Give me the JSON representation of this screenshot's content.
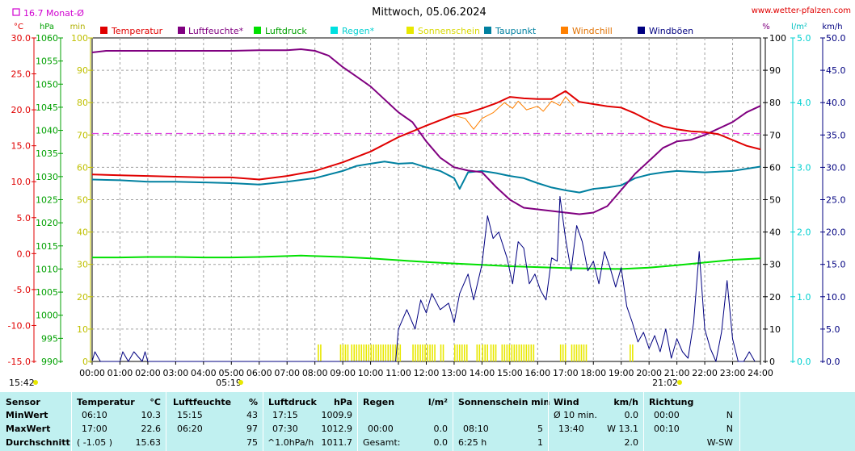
{
  "header": {
    "title": "Mittwoch, 05.06.2024",
    "site": "www.wetter-pfalzen.com",
    "avg_label": "16.7 Monat-Ø"
  },
  "axes": {
    "units_left": [
      "°C",
      "hPa",
      "min"
    ],
    "units_right": [
      "%",
      "l/m²",
      "km/h"
    ],
    "temp_ticks": [
      "30.0",
      "25.0",
      "20.0",
      "15.0",
      "10.0",
      "5.0",
      "0.0",
      "-5.0",
      "-10.0",
      "-15.0"
    ],
    "press_ticks": [
      "1060",
      "1055",
      "1050",
      "1045",
      "1040",
      "1035",
      "1030",
      "1025",
      "1020",
      "1015",
      "1010",
      "1005",
      "1000",
      "995",
      "990"
    ],
    "min_ticks": [
      "100",
      "90",
      "80",
      "70",
      "60",
      "50",
      "40",
      "30",
      "20",
      "10",
      "0"
    ],
    "hum_ticks": [
      "100",
      "90",
      "80",
      "70",
      "60",
      "50",
      "40",
      "30",
      "20",
      "10",
      "0"
    ],
    "rain_ticks": [
      "5.0",
      "4.0",
      "3.0",
      "2.0",
      "1.0",
      "0.0"
    ],
    "wind_ticks": [
      "50.0",
      "45.0",
      "40.0",
      "35.0",
      "30.0",
      "25.0",
      "20.0",
      "15.0",
      "10.0",
      "5.0",
      "0.0"
    ],
    "time_ticks": [
      "00:00",
      "01:00",
      "02:00",
      "03:00",
      "04:00",
      "05:00",
      "06:00",
      "07:00",
      "08:00",
      "09:00",
      "10:00",
      "11:00",
      "12:00",
      "13:00",
      "14:00",
      "15:00",
      "16:00",
      "17:00",
      "18:00",
      "19:00",
      "20:00",
      "21:00",
      "22:00",
      "23:00",
      "24:00"
    ],
    "sunrise": "05:19",
    "sunset": "21:02",
    "daylength": "15:42"
  },
  "legend": [
    {
      "label": "Temperatur",
      "color": "#e00000"
    },
    {
      "label": "Luftfeuchte*",
      "color": "#800080"
    },
    {
      "label": "Luftdruck",
      "color": "#00e000"
    },
    {
      "label": "Regen*",
      "color": "#00e0e0"
    },
    {
      "label": "Sonnenschein",
      "color": "#e8e800"
    },
    {
      "label": "Taupunkt",
      "color": "#0080a0"
    },
    {
      "label": "Windchill",
      "color": "#ff8000"
    },
    {
      "label": "Windböen",
      "color": "#000080"
    }
  ],
  "chart_data": {
    "type": "line",
    "title": "Mittwoch, 05.06.2024",
    "x_range": [
      "00:00",
      "24:00"
    ],
    "scales": {
      "temperature_c": [
        -15,
        30
      ],
      "pressure_hpa": [
        990,
        1060
      ],
      "sunshine_min": [
        0,
        100
      ],
      "humidity_pct": [
        0,
        100
      ],
      "rain_l_m2": [
        0,
        5
      ],
      "wind_kmh": [
        0,
        50
      ]
    },
    "grid": true,
    "reference_line": {
      "name": "16.7 Monat-Ø",
      "value": 16.7,
      "unit": "°C"
    },
    "series": [
      {
        "name": "Temperatur",
        "color": "#e00000",
        "axis": "temperature_c",
        "points": [
          [
            0,
            11.0
          ],
          [
            1,
            10.9
          ],
          [
            2,
            10.8
          ],
          [
            3,
            10.7
          ],
          [
            4,
            10.6
          ],
          [
            5,
            10.6
          ],
          [
            6,
            10.3
          ],
          [
            7,
            10.8
          ],
          [
            8,
            11.5
          ],
          [
            9,
            12.7
          ],
          [
            10,
            14.2
          ],
          [
            11,
            16.2
          ],
          [
            12,
            17.8
          ],
          [
            13,
            19.3
          ],
          [
            13.5,
            19.6
          ],
          [
            14,
            20.2
          ],
          [
            14.5,
            20.9
          ],
          [
            15,
            21.8
          ],
          [
            15.5,
            21.6
          ],
          [
            16,
            21.5
          ],
          [
            16.5,
            21.5
          ],
          [
            17,
            22.6
          ],
          [
            17.5,
            21.1
          ],
          [
            18,
            20.8
          ],
          [
            18.5,
            20.5
          ],
          [
            19,
            20.3
          ],
          [
            19.5,
            19.5
          ],
          [
            20,
            18.5
          ],
          [
            20.5,
            17.7
          ],
          [
            21,
            17.3
          ],
          [
            21.5,
            17.0
          ],
          [
            22,
            16.9
          ],
          [
            22.5,
            16.6
          ],
          [
            23,
            15.8
          ],
          [
            23.5,
            15.0
          ],
          [
            24,
            14.5
          ]
        ]
      },
      {
        "name": "Luftfeuchte*",
        "color": "#800080",
        "axis": "humidity_pct",
        "points": [
          [
            0,
            95.5
          ],
          [
            0.5,
            96.0
          ],
          [
            1,
            96.0
          ],
          [
            2,
            96.0
          ],
          [
            3,
            96.0
          ],
          [
            4,
            96.0
          ],
          [
            5,
            96.0
          ],
          [
            6,
            96.2
          ],
          [
            7,
            96.2
          ],
          [
            7.5,
            96.5
          ],
          [
            8,
            96.0
          ],
          [
            8.5,
            94.5
          ],
          [
            9,
            91.0
          ],
          [
            9.5,
            88.0
          ],
          [
            10,
            85.0
          ],
          [
            10.5,
            81.0
          ],
          [
            11,
            77.0
          ],
          [
            11.5,
            74.0
          ],
          [
            12,
            68.0
          ],
          [
            12.5,
            63.0
          ],
          [
            13,
            60.0
          ],
          [
            13.5,
            59.0
          ],
          [
            14,
            58.5
          ],
          [
            14.5,
            54.0
          ],
          [
            15,
            50.0
          ],
          [
            15.5,
            47.5
          ],
          [
            16,
            47.0
          ],
          [
            16.5,
            46.5
          ],
          [
            17,
            46.0
          ],
          [
            17.5,
            45.5
          ],
          [
            18,
            46.0
          ],
          [
            18.5,
            48.0
          ],
          [
            19,
            53.0
          ],
          [
            19.5,
            58.0
          ],
          [
            20,
            62.0
          ],
          [
            20.5,
            66.0
          ],
          [
            21,
            68.0
          ],
          [
            21.5,
            68.5
          ],
          [
            22,
            70.0
          ],
          [
            22.5,
            72.0
          ],
          [
            23,
            74.0
          ],
          [
            23.5,
            77.0
          ],
          [
            24,
            79.0
          ]
        ]
      },
      {
        "name": "Luftdruck",
        "color": "#00e000",
        "axis": "pressure_hpa",
        "points": [
          [
            0,
            1012.5
          ],
          [
            1,
            1012.5
          ],
          [
            2,
            1012.6
          ],
          [
            3,
            1012.6
          ],
          [
            4,
            1012.5
          ],
          [
            5,
            1012.5
          ],
          [
            6,
            1012.6
          ],
          [
            7,
            1012.8
          ],
          [
            7.5,
            1012.9
          ],
          [
            8,
            1012.8
          ],
          [
            9,
            1012.6
          ],
          [
            10,
            1012.3
          ],
          [
            11,
            1011.9
          ],
          [
            12,
            1011.5
          ],
          [
            13,
            1011.2
          ],
          [
            14,
            1010.9
          ],
          [
            15,
            1010.6
          ],
          [
            16,
            1010.4
          ],
          [
            17,
            1010.2
          ],
          [
            18,
            1010.1
          ],
          [
            19,
            1010.0
          ],
          [
            20,
            1010.3
          ],
          [
            21,
            1010.8
          ],
          [
            22,
            1011.4
          ],
          [
            23,
            1012.0
          ],
          [
            24,
            1012.3
          ]
        ]
      },
      {
        "name": "Taupunkt",
        "color": "#0080a0",
        "axis": "temperature_c",
        "points": [
          [
            0,
            10.3
          ],
          [
            1,
            10.2
          ],
          [
            2,
            10.0
          ],
          [
            3,
            10.0
          ],
          [
            4,
            9.9
          ],
          [
            5,
            9.8
          ],
          [
            6,
            9.6
          ],
          [
            7,
            10.0
          ],
          [
            8,
            10.5
          ],
          [
            9,
            11.5
          ],
          [
            9.5,
            12.2
          ],
          [
            10,
            12.5
          ],
          [
            10.5,
            12.8
          ],
          [
            11,
            12.5
          ],
          [
            11.5,
            12.6
          ],
          [
            12,
            12.0
          ],
          [
            12.5,
            11.5
          ],
          [
            13,
            10.5
          ],
          [
            13.2,
            9.0
          ],
          [
            13.5,
            11.3
          ],
          [
            14,
            11.5
          ],
          [
            14.5,
            11.2
          ],
          [
            15,
            10.8
          ],
          [
            15.5,
            10.5
          ],
          [
            16,
            9.8
          ],
          [
            16.5,
            9.2
          ],
          [
            17,
            8.8
          ],
          [
            17.5,
            8.5
          ],
          [
            18,
            9.0
          ],
          [
            18.5,
            9.2
          ],
          [
            19,
            9.5
          ],
          [
            19.5,
            10.5
          ],
          [
            20,
            11.0
          ],
          [
            20.5,
            11.3
          ],
          [
            21,
            11.5
          ],
          [
            22,
            11.3
          ],
          [
            23,
            11.5
          ],
          [
            24,
            12.1
          ]
        ]
      },
      {
        "name": "Windchill",
        "color": "#ff8000",
        "axis": "temperature_c",
        "points": [
          [
            13.0,
            19.2
          ],
          [
            13.4,
            18.8
          ],
          [
            13.7,
            17.3
          ],
          [
            14.0,
            18.8
          ],
          [
            14.4,
            19.6
          ],
          [
            14.8,
            21.0
          ],
          [
            15.1,
            20.2
          ],
          [
            15.3,
            21.2
          ],
          [
            15.6,
            20.0
          ],
          [
            16.0,
            20.5
          ],
          [
            16.2,
            19.8
          ],
          [
            16.5,
            21.2
          ],
          [
            16.8,
            20.6
          ],
          [
            17.0,
            21.8
          ],
          [
            17.3,
            20.5
          ]
        ]
      }
    ],
    "windgusts": {
      "name": "Windböen",
      "color": "#000080",
      "axis": "wind_kmh",
      "points": [
        [
          0,
          0
        ],
        [
          0.1,
          1.5
        ],
        [
          0.3,
          0
        ],
        [
          1,
          0
        ],
        [
          1.1,
          1.5
        ],
        [
          1.3,
          0
        ],
        [
          1.5,
          1.5
        ],
        [
          1.8,
          0
        ],
        [
          1.9,
          1.5
        ],
        [
          2,
          0
        ],
        [
          10.9,
          0
        ],
        [
          11.0,
          5.0
        ],
        [
          11.3,
          8.0
        ],
        [
          11.6,
          5.0
        ],
        [
          11.8,
          9.5
        ],
        [
          12.0,
          7.5
        ],
        [
          12.2,
          10.5
        ],
        [
          12.5,
          8.0
        ],
        [
          12.8,
          9.0
        ],
        [
          13.0,
          6.0
        ],
        [
          13.2,
          10.5
        ],
        [
          13.5,
          13.5
        ],
        [
          13.7,
          9.5
        ],
        [
          14.0,
          15.0
        ],
        [
          14.2,
          22.5
        ],
        [
          14.4,
          19.0
        ],
        [
          14.6,
          20.0
        ],
        [
          14.9,
          16.0
        ],
        [
          15.1,
          12.0
        ],
        [
          15.3,
          18.5
        ],
        [
          15.5,
          17.5
        ],
        [
          15.7,
          12.0
        ],
        [
          15.9,
          13.5
        ],
        [
          16.1,
          11.0
        ],
        [
          16.3,
          9.5
        ],
        [
          16.5,
          16.0
        ],
        [
          16.7,
          15.5
        ],
        [
          16.8,
          25.5
        ],
        [
          17.0,
          19.0
        ],
        [
          17.2,
          14.0
        ],
        [
          17.4,
          21.0
        ],
        [
          17.6,
          18.5
        ],
        [
          17.8,
          14.0
        ],
        [
          18.0,
          15.5
        ],
        [
          18.2,
          12.0
        ],
        [
          18.4,
          17.0
        ],
        [
          18.6,
          14.5
        ],
        [
          18.8,
          11.5
        ],
        [
          19.0,
          14.5
        ],
        [
          19.2,
          8.5
        ],
        [
          19.4,
          6.0
        ],
        [
          19.6,
          3.0
        ],
        [
          19.8,
          4.5
        ],
        [
          20.0,
          2.0
        ],
        [
          20.2,
          4.0
        ],
        [
          20.4,
          1.5
        ],
        [
          20.6,
          5.0
        ],
        [
          20.8,
          0.5
        ],
        [
          21.0,
          3.5
        ],
        [
          21.2,
          1.5
        ],
        [
          21.4,
          0.5
        ],
        [
          21.6,
          6.0
        ],
        [
          21.8,
          17.0
        ],
        [
          22.0,
          5.0
        ],
        [
          22.2,
          2.0
        ],
        [
          22.4,
          0
        ],
        [
          22.6,
          4.5
        ],
        [
          22.8,
          12.5
        ],
        [
          23.0,
          3.5
        ],
        [
          23.2,
          0
        ],
        [
          23.4,
          0
        ],
        [
          23.6,
          1.5
        ],
        [
          23.8,
          0
        ]
      ]
    },
    "sunshine_intervals": [
      [
        8.1,
        8.2
      ],
      [
        8.9,
        9.2
      ],
      [
        9.3,
        11.1
      ],
      [
        11.5,
        12.3
      ],
      [
        12.5,
        12.6
      ],
      [
        13.0,
        13.5
      ],
      [
        13.8,
        13.9
      ],
      [
        14.0,
        14.2
      ],
      [
        14.3,
        14.5
      ],
      [
        14.7,
        15.9
      ],
      [
        16.8,
        17.0
      ],
      [
        17.2,
        17.8
      ],
      [
        19.3,
        19.4
      ]
    ]
  },
  "stats": {
    "headers": {
      "sensor": "Sensor",
      "temp": "Temperatur",
      "temp_unit": "°C",
      "hum": "Luftfeuchte",
      "hum_unit": "%",
      "press": "Luftdruck",
      "press_unit": "hPa",
      "rain": "Regen",
      "rain_unit": "l/m²",
      "sun": "Sonnenschein min",
      "wind": "Wind",
      "wind_unit": "km/h",
      "dir": "Richtung"
    },
    "row_labels": [
      "MinWert",
      "MaxWert",
      "Durchschnitt"
    ],
    "temp": [
      [
        "06:10",
        "10.3"
      ],
      [
        "17:00",
        "22.6"
      ],
      [
        "( -1.05 )",
        "15.63"
      ]
    ],
    "hum": [
      [
        "15:15",
        "43"
      ],
      [
        "06:20",
        "97"
      ],
      [
        "",
        "75"
      ]
    ],
    "press": [
      [
        "17:15",
        "1009.9"
      ],
      [
        "07:30",
        "1012.9"
      ],
      [
        "^1.0hPa/h",
        "1011.7"
      ]
    ],
    "rain": [
      [
        "",
        ""
      ],
      [
        "00:00",
        "0.0"
      ],
      [
        "Gesamt:",
        "0.0"
      ]
    ],
    "sun": [
      [
        "",
        ""
      ],
      [
        "08:10",
        "5"
      ],
      [
        "6:25 h",
        "1"
      ]
    ],
    "wind": [
      [
        "Ø 10 min.",
        "0.0"
      ],
      [
        "13:40",
        "W 13.1"
      ],
      [
        "",
        "2.0"
      ]
    ],
    "dir": [
      [
        "00:00",
        "N"
      ],
      [
        "00:10",
        "N"
      ],
      [
        "",
        "W-SW"
      ]
    ]
  }
}
